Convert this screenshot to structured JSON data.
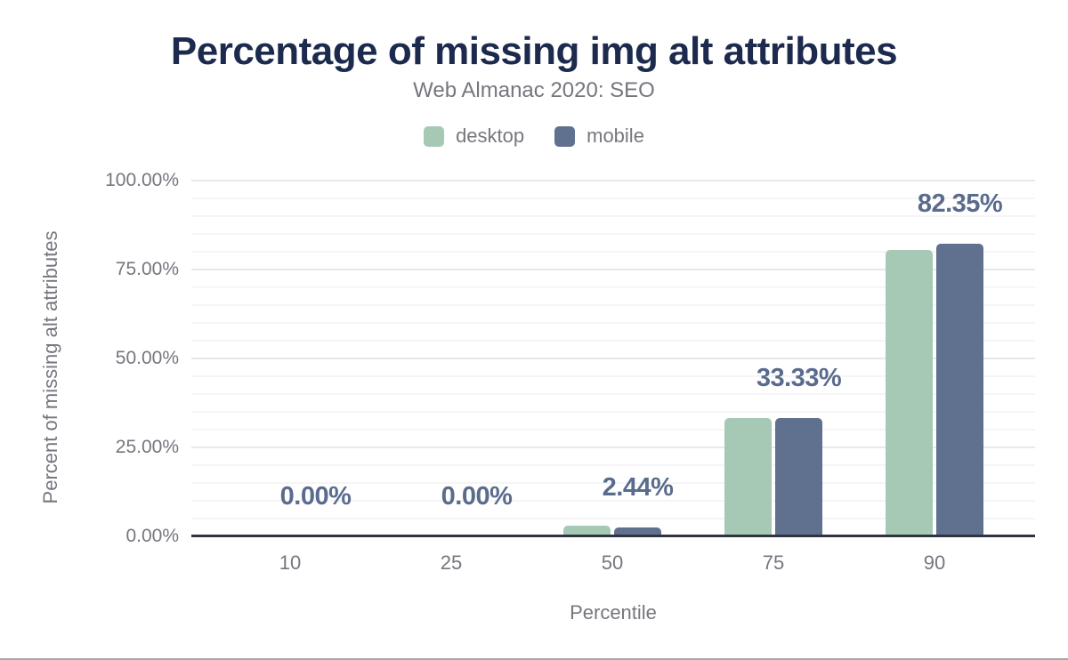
{
  "chart_data": {
    "type": "bar",
    "title": "Percentage of missing img alt attributes",
    "subtitle": "Web Almanac 2020: SEO",
    "xlabel": "Percentile",
    "ylabel": "Percent of missing alt attributes",
    "categories": [
      "10",
      "25",
      "50",
      "75",
      "90"
    ],
    "series": [
      {
        "name": "desktop",
        "color": "#a6c9b6",
        "values": [
          0,
          0,
          3.0,
          33.33,
          80.4
        ]
      },
      {
        "name": "mobile",
        "color": "#5f718e",
        "values": [
          0,
          0,
          2.44,
          33.33,
          82.35
        ]
      }
    ],
    "value_labels": {
      "series": "mobile",
      "texts": [
        "0.00%",
        "0.00%",
        "2.44%",
        "33.33%",
        "82.35%"
      ]
    },
    "yticks": [
      {
        "v": 0,
        "label": "0.00%"
      },
      {
        "v": 25,
        "label": "25.00%"
      },
      {
        "v": 50,
        "label": "50.00%"
      },
      {
        "v": 75,
        "label": "75.00%"
      },
      {
        "v": 100,
        "label": "100.00%"
      }
    ],
    "ylim": [
      0,
      100
    ],
    "grid": {
      "minor_step": 5,
      "major_step": 25,
      "on": true
    },
    "legend_position": "top"
  },
  "colors": {
    "title_text": "#1c2a4e",
    "muted_text": "#76767f",
    "value_label_text": "#5a6c8e",
    "axis_line": "#30343f",
    "grid_major": "#e8e8ea",
    "grid_minor": "#f5f5f6",
    "desktop_series": "#a6c9b6",
    "mobile_series": "#5f718e",
    "figure_border": "#a8a8a8"
  }
}
